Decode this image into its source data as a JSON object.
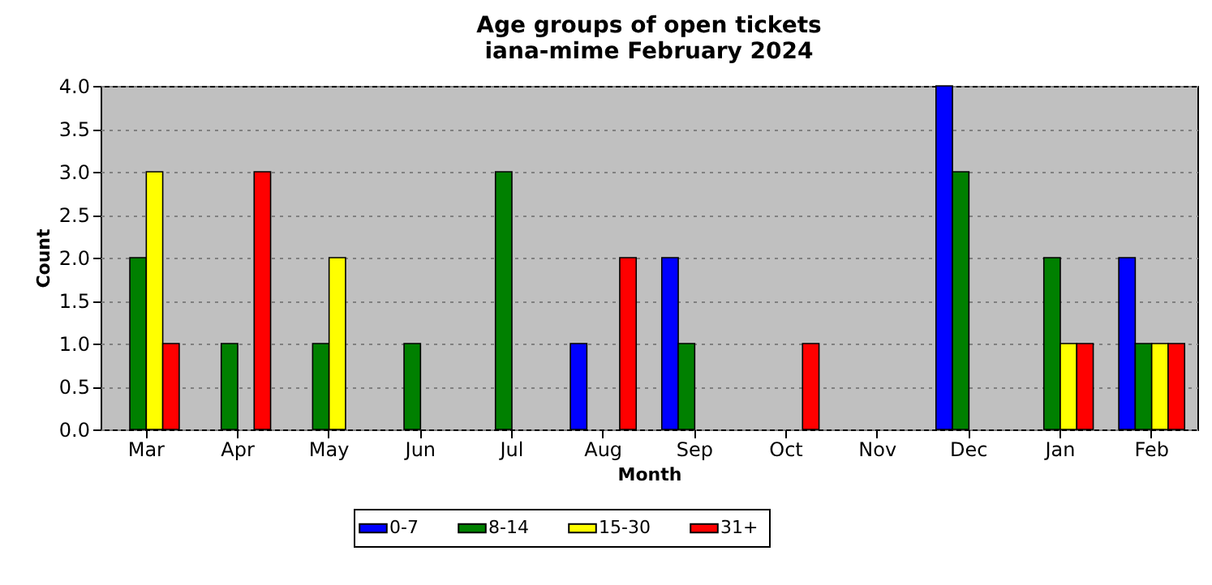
{
  "chart_data": {
    "type": "bar",
    "title": "Age groups of open tickets\niana-mime February 2024",
    "xlabel": "Month",
    "ylabel": "Count",
    "categories": [
      "Mar",
      "Apr",
      "May",
      "Jun",
      "Jul",
      "Aug",
      "Sep",
      "Oct",
      "Nov",
      "Dec",
      "Jan",
      "Feb"
    ],
    "series": [
      {
        "name": "0-7",
        "color": "#0000ff",
        "values": [
          0,
          0,
          0,
          0,
          0,
          1,
          2,
          0,
          0,
          4,
          0,
          2
        ]
      },
      {
        "name": "8-14",
        "color": "#008000",
        "values": [
          2,
          1,
          1,
          1,
          3,
          0,
          1,
          0,
          0,
          3,
          2,
          1
        ]
      },
      {
        "name": "15-30",
        "color": "#ffff00",
        "values": [
          3,
          0,
          2,
          0,
          0,
          0,
          0,
          0,
          0,
          0,
          1,
          1
        ]
      },
      {
        "name": "31+",
        "color": "#ff0000",
        "values": [
          1,
          3,
          0,
          0,
          0,
          2,
          0,
          1,
          0,
          0,
          1,
          1
        ]
      }
    ],
    "ylim": [
      0,
      4
    ],
    "yticks": [
      {
        "value": 0,
        "label": "0.0"
      },
      0.5,
      {
        "value": 1,
        "label": "1.0"
      },
      1.5,
      {
        "value": 2,
        "label": "2.0"
      },
      2.5,
      {
        "value": 3,
        "label": "3.0"
      },
      3.5,
      {
        "value": 4,
        "label": "4.0"
      }
    ],
    "grid": "y",
    "legend": "bottom"
  }
}
